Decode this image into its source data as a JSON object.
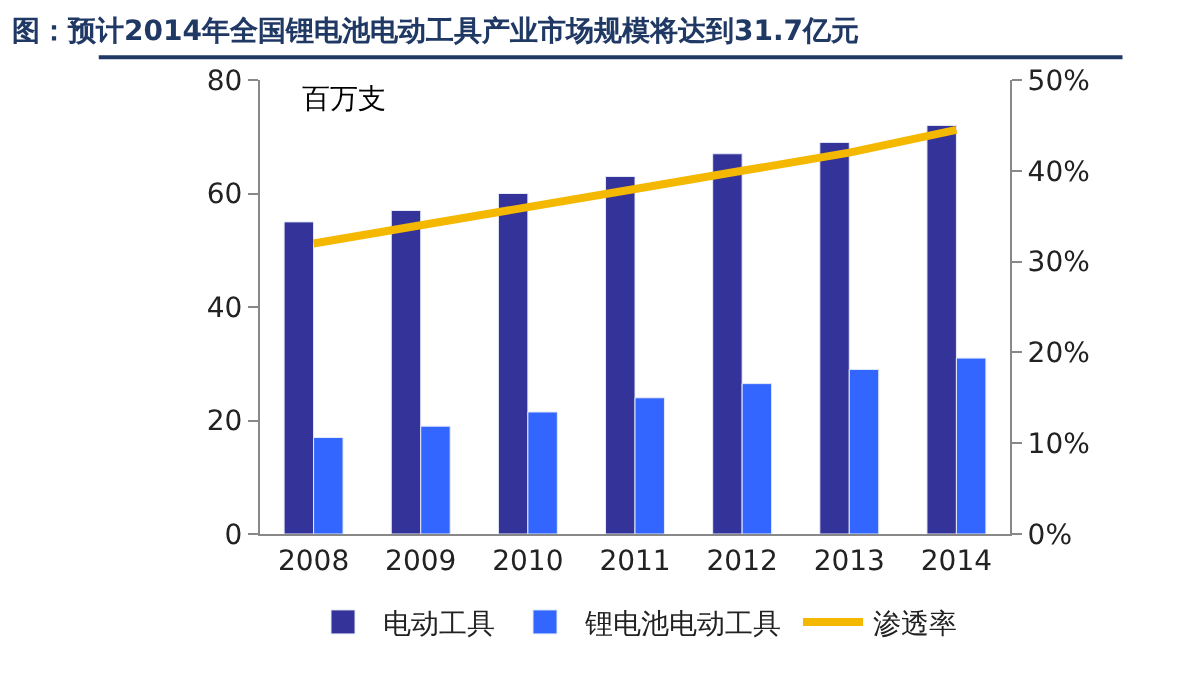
{
  "chart_data": {
    "type": "bar",
    "title": "图：预计2014年全国锂电池电动工具产业市场规模将达到31.7亿元",
    "categories": [
      "2008",
      "2009",
      "2010",
      "2011",
      "2012",
      "2013",
      "2014"
    ],
    "series": [
      {
        "name": "电动工具",
        "color": "#333399",
        "values": [
          55,
          57,
          60,
          63,
          67,
          69,
          72
        ]
      },
      {
        "name": "锂电池电动工具",
        "color": "#3366ff",
        "values": [
          17,
          19,
          21.5,
          24,
          26.5,
          29,
          31
        ]
      },
      {
        "name": "渗透率",
        "color": "#f5b800",
        "type": "line",
        "axis": "y2",
        "values": [
          32,
          34,
          36,
          38,
          40,
          42,
          44.5
        ]
      }
    ],
    "annotations": [
      "百万支"
    ],
    "ylim": [
      0,
      80
    ],
    "yticks": [
      0,
      20,
      40,
      60,
      80
    ],
    "y2lim": [
      0,
      50
    ],
    "y2ticks": [
      {
        "value": 0,
        "label": "0%"
      },
      {
        "value": 10,
        "label": "10%"
      },
      {
        "value": 20,
        "label": "20%"
      },
      {
        "value": 30,
        "label": "30%"
      },
      {
        "value": 40,
        "label": "40%"
      },
      {
        "value": 50,
        "label": "50%"
      }
    ],
    "legend": "bottom",
    "marker": "none"
  }
}
